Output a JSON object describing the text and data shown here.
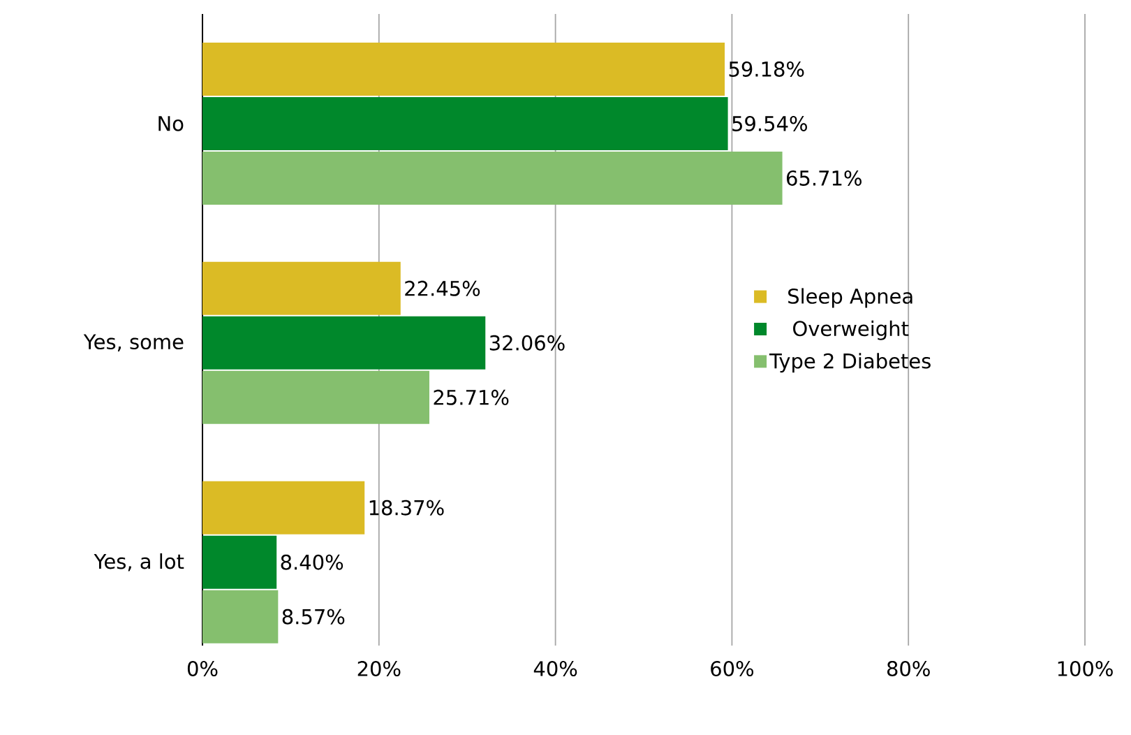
{
  "chart_data": {
    "type": "bar",
    "orientation": "horizontal",
    "categories": [
      "No",
      "Yes, some",
      "Yes, a lot"
    ],
    "series": [
      {
        "name": "Sleep Apnea",
        "color": "#dbbb25",
        "values": [
          59.18,
          22.45,
          18.37
        ],
        "value_labels": [
          "59.18%",
          "22.45%",
          "18.37%"
        ]
      },
      {
        "name": "Overweight",
        "color": "#00882b",
        "values": [
          59.54,
          32.06,
          8.4
        ],
        "value_labels": [
          "59.54%",
          "32.06%",
          "8.40%"
        ]
      },
      {
        "name": "Type 2 Diabetes",
        "color": "#85bf6e",
        "values": [
          65.71,
          25.71,
          8.57
        ],
        "value_labels": [
          "65.71%",
          "25.71%",
          "8.57%"
        ]
      }
    ],
    "xlim": [
      0,
      100
    ],
    "xticks": [
      {
        "value": 0,
        "label": "0%"
      },
      {
        "value": 20,
        "label": "20%"
      },
      {
        "value": 40,
        "label": "40%"
      },
      {
        "value": 60,
        "label": "60%"
      },
      {
        "value": 80,
        "label": "80%"
      },
      {
        "value": 100,
        "label": "100%"
      }
    ],
    "grid": "x",
    "legend": "right"
  }
}
